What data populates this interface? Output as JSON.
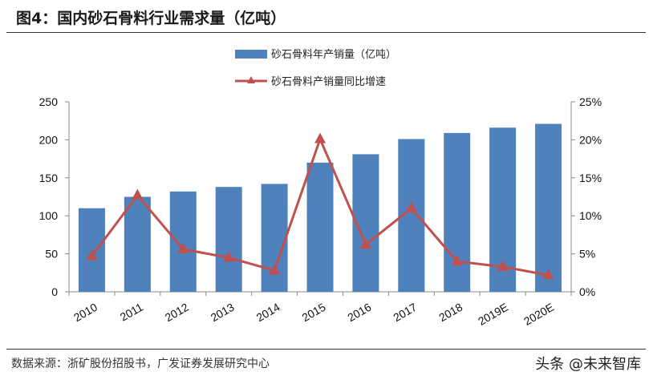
{
  "title": "图4：国内砂石骨料行业需求量（亿吨）",
  "source": "数据来源：浙矿股份招股书，广发证券发展研究中心",
  "watermark": "头条 @未来智库",
  "chart_data": {
    "type": "bar+line",
    "categories": [
      "2010",
      "2011",
      "2012",
      "2013",
      "2014",
      "2015",
      "2016",
      "2017",
      "2018",
      "2019E",
      "2020E"
    ],
    "series": [
      {
        "name": "砂石骨料年产销量（亿吨）",
        "type": "bar",
        "axis": "left",
        "color": "#4f81bd",
        "values": [
          110,
          125,
          132,
          138,
          142,
          170,
          181,
          201,
          209,
          216,
          221
        ]
      },
      {
        "name": "砂石骨料产销量同比增速",
        "type": "line",
        "axis": "right",
        "color": "#c0504d",
        "marker": "triangle",
        "values": [
          4.7,
          12.7,
          5.6,
          4.5,
          2.8,
          20.1,
          6.2,
          11.0,
          4.0,
          3.3,
          2.2
        ]
      }
    ],
    "y_left": {
      "range": [
        0,
        250
      ],
      "ticks": [
        "0",
        "50",
        "100",
        "150",
        "200",
        "250"
      ]
    },
    "y_right": {
      "range": [
        0,
        25
      ],
      "ticks": [
        "0%",
        "5%",
        "10%",
        "15%",
        "20%",
        "25%"
      ]
    },
    "grid": false,
    "legend": "top-center"
  }
}
